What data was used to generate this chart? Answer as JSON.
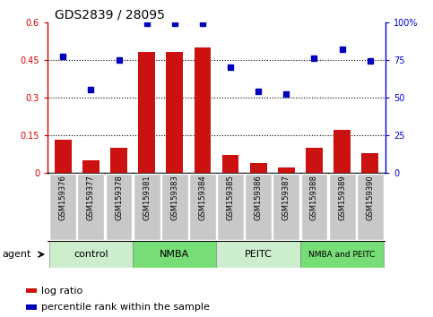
{
  "title": "GDS2839 / 28095",
  "samples": [
    "GSM159376",
    "GSM159377",
    "GSM159378",
    "GSM159381",
    "GSM159383",
    "GSM159384",
    "GSM159385",
    "GSM159386",
    "GSM159387",
    "GSM159388",
    "GSM159389",
    "GSM159390"
  ],
  "log_ratio": [
    0.13,
    0.05,
    0.1,
    0.48,
    0.48,
    0.5,
    0.07,
    0.04,
    0.02,
    0.1,
    0.17,
    0.08
  ],
  "pct_rank": [
    77,
    55,
    75,
    99,
    99,
    99,
    70,
    54,
    52,
    76,
    82,
    74
  ],
  "groups": [
    {
      "label": "control",
      "start": 0,
      "end": 3,
      "color": "#cceecc"
    },
    {
      "label": "NMBA",
      "start": 3,
      "end": 6,
      "color": "#77dd77"
    },
    {
      "label": "PEITC",
      "start": 6,
      "end": 9,
      "color": "#cceecc"
    },
    {
      "label": "NMBA and PEITC",
      "start": 9,
      "end": 12,
      "color": "#77dd77"
    }
  ],
  "bar_color": "#cc1111",
  "dot_color": "#0000bb",
  "ylim_left": [
    0,
    0.6
  ],
  "ylim_right": [
    0,
    100
  ],
  "yticks_left": [
    0,
    0.15,
    0.3,
    0.45,
    0.6
  ],
  "yticks_right": [
    0,
    25,
    50,
    75,
    100
  ],
  "ytick_labels_left": [
    "0",
    "0.15",
    "0.3",
    "0.45",
    "0.6"
  ],
  "ytick_labels_right": [
    "0",
    "25",
    "50",
    "75",
    "100%"
  ],
  "hlines": [
    0.15,
    0.3,
    0.45
  ],
  "agent_label": "agent",
  "legend_bar_label": "log ratio",
  "legend_dot_label": "percentile rank within the sample",
  "bar_width": 0.6,
  "left_axis_color": "#cc0000",
  "right_axis_color": "#0000cc",
  "grey_box_color": "#c8c8c8",
  "tick_fontsize": 7,
  "group_fontsize": 8,
  "legend_fontsize": 8,
  "title_fontsize": 10
}
